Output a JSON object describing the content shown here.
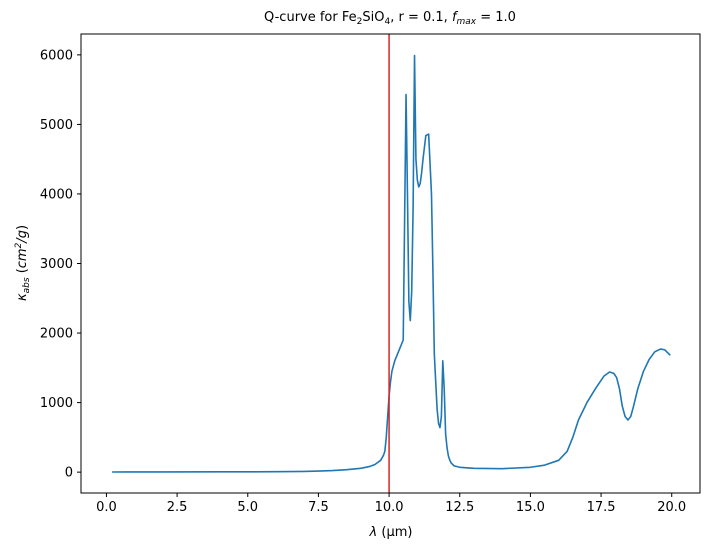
{
  "chart_data": {
    "type": "line",
    "title": {
      "prefix": "Q-curve for Fe",
      "sub1": "2",
      "mid1": "SiO",
      "sub2": "4",
      "mid2": ", r = 0.1, ",
      "f_italic": "f",
      "f_sub": "max",
      "suffix": " = 1.0"
    },
    "xlabel": {
      "symbol": "λ",
      "rest": " (μm)",
      "mu": "μ"
    },
    "ylabel": {
      "kappa": "κ",
      "kappa_sub": "abs",
      "units_prefix": " (",
      "cm": "cm",
      "cm_exp": "2",
      "per_g": "/g",
      "units_suffix": ")"
    },
    "xlim": [
      -0.9,
      21.0
    ],
    "ylim": [
      -300,
      6300
    ],
    "xticks": [
      0.0,
      2.5,
      5.0,
      7.5,
      10.0,
      12.5,
      15.0,
      17.5,
      20.0
    ],
    "xtick_labels": [
      "0.0",
      "2.5",
      "5.0",
      "7.5",
      "10.0",
      "12.5",
      "15.0",
      "17.5",
      "20.0"
    ],
    "yticks": [
      0,
      1000,
      2000,
      3000,
      4000,
      5000,
      6000
    ],
    "ytick_labels": [
      "0",
      "1000",
      "2000",
      "3000",
      "4000",
      "5000",
      "6000"
    ],
    "vline": {
      "x": 10.0,
      "color": "#d62728"
    },
    "series": [
      {
        "color": "#1f77b4",
        "x": [
          0.2,
          2.0,
          4.0,
          6.0,
          7.0,
          7.5,
          8.0,
          8.5,
          9.0,
          9.3,
          9.5,
          9.7,
          9.8,
          9.85,
          9.9,
          9.95,
          10.0,
          10.05,
          10.1,
          10.2,
          10.3,
          10.4,
          10.5,
          10.6,
          10.65,
          10.7,
          10.75,
          10.8,
          10.85,
          10.9,
          10.95,
          11.0,
          11.05,
          11.1,
          11.15,
          11.2,
          11.3,
          11.4,
          11.5,
          11.55,
          11.6,
          11.65,
          11.7,
          11.75,
          11.8,
          11.85,
          11.9,
          11.95,
          12.0,
          12.05,
          12.1,
          12.15,
          12.2,
          12.3,
          12.5,
          13.0,
          14.0,
          15.0,
          15.5,
          16.0,
          16.3,
          16.5,
          16.7,
          17.0,
          17.3,
          17.6,
          17.8,
          17.95,
          18.05,
          18.15,
          18.25,
          18.35,
          18.45,
          18.55,
          18.65,
          18.8,
          19.0,
          19.2,
          19.4,
          19.6,
          19.75,
          19.85,
          19.95
        ],
        "y": [
          2,
          3,
          4,
          6,
          10,
          15,
          22,
          35,
          55,
          80,
          110,
          170,
          240,
          300,
          500,
          800,
          1100,
          1300,
          1450,
          1600,
          1700,
          1800,
          1900,
          5430,
          4000,
          2450,
          2180,
          2600,
          3800,
          5990,
          4500,
          4200,
          4100,
          4150,
          4300,
          4500,
          4840,
          4860,
          4000,
          2900,
          1700,
          1300,
          900,
          700,
          640,
          800,
          1600,
          1200,
          550,
          350,
          230,
          170,
          130,
          90,
          70,
          55,
          50,
          70,
          100,
          170,
          300,
          500,
          750,
          1000,
          1200,
          1380,
          1440,
          1420,
          1360,
          1200,
          950,
          800,
          750,
          800,
          950,
          1200,
          1450,
          1620,
          1730,
          1770,
          1760,
          1720,
          1680
        ]
      }
    ]
  }
}
